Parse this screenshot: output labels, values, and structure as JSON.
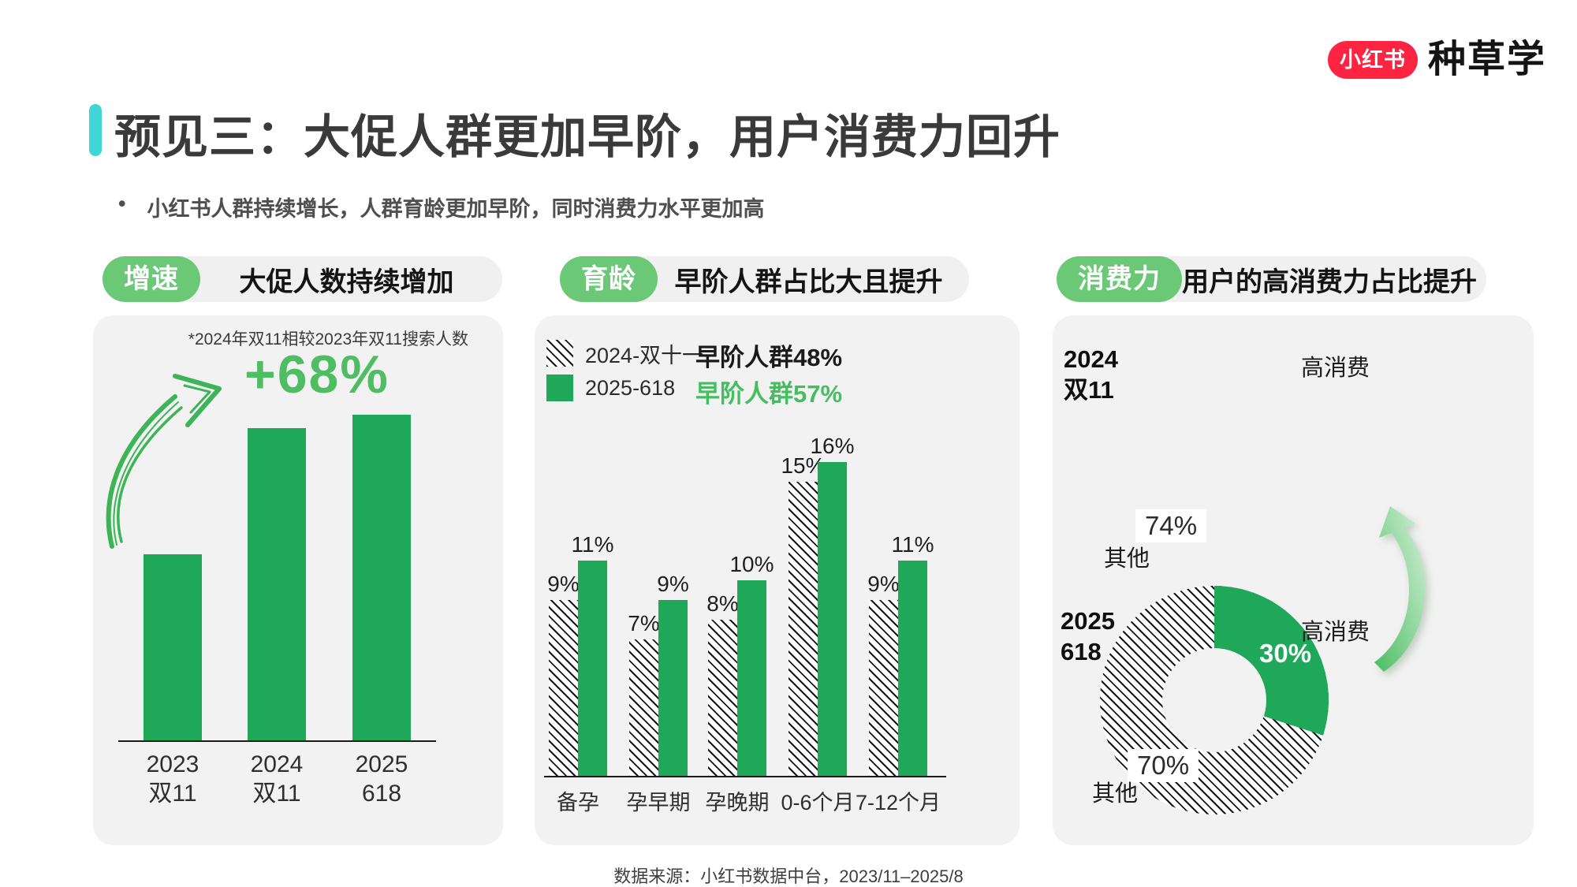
{
  "logo": {
    "badge": "小红书",
    "brand": "种草学",
    "badge_color": "#FF2442"
  },
  "header": {
    "title": "预见三：大促人群更加早阶，用户消费力回升",
    "accent_color": "#40D6D6",
    "subtitle_bullet": "•",
    "subtitle": "小红书人群持续增长，人群育龄更加早阶，同时消费力水平更加高"
  },
  "colors": {
    "solid_green": "#1FA75A",
    "pill_green": "#6AC877",
    "annotation_green": "#4FBD63",
    "card_bg": "#F2F2F2"
  },
  "panels": {
    "growth": {
      "tag": "增速",
      "heading": "大促人数持续增加",
      "footnote": "*2024年双11相较2023年双11搜索人数",
      "annotation": "+68%",
      "category_lines": [
        [
          "2023",
          "双11"
        ],
        [
          "2024",
          "双11"
        ],
        [
          "2025",
          "618"
        ]
      ]
    },
    "fertility": {
      "tag": "育龄",
      "heading": "早阶人群占比大且提升",
      "highlight_2024": "早阶人群48%",
      "highlight_2025": "早阶人群57%"
    },
    "spending": {
      "tag": "消费力",
      "heading": "用户的高消费力占比提升",
      "group_2024": {
        "label_line1": "2024",
        "label_line2": "双11",
        "high_label": "高消费",
        "other_value": "74%",
        "other_label": "其他"
      },
      "group_2025": {
        "label_line1": "2025",
        "label_line2": "618",
        "high_label": "高消费",
        "high_value": "30%",
        "other_value": "70%",
        "other_label": "其他"
      }
    }
  },
  "chart_data": [
    {
      "id": "growth-bar",
      "type": "bar",
      "title": "大促人数持续增加",
      "footnote": "*2024年双11相较2023年双11搜索人数",
      "categories": [
        "2023 双11",
        "2024 双11",
        "2025 618"
      ],
      "values": [
        100,
        168,
        175
      ],
      "value_basis": "relative search population index (2023双11 = 100)",
      "annotation": "+68%",
      "bar_color": "#1FA75A",
      "grid": false
    },
    {
      "id": "fertility-grouped-bar",
      "type": "bar",
      "categories": [
        "备孕",
        "孕早期",
        "孕晚期",
        "0-6个月",
        "7-12个月"
      ],
      "series": [
        {
          "name": "2024-双十一",
          "style": "black-white-hatched",
          "values": [
            9,
            7,
            8,
            15,
            9
          ]
        },
        {
          "name": "2025-618",
          "style": "solid-green",
          "values": [
            11,
            9,
            10,
            16,
            11
          ]
        }
      ],
      "unit": "%",
      "annotations": [
        "早阶人群48%",
        "早阶人群57%"
      ],
      "legend_position": "top-left",
      "grid": false
    },
    {
      "id": "spending-2024-double11",
      "type": "pie",
      "group": "2024 双11",
      "slices": [
        {
          "label": "高消费"
        },
        {
          "label": "其他",
          "value": 74
        }
      ],
      "unit": "%"
    },
    {
      "id": "spending-2025-618-donut",
      "type": "pie",
      "group": "2025 618",
      "slices": [
        {
          "label": "高消费",
          "value": 30,
          "style": "solid-green"
        },
        {
          "label": "其他",
          "value": 70,
          "style": "black-white-hatched"
        }
      ],
      "unit": "%"
    }
  ],
  "footer": {
    "source": "数据来源：小红书数据中台，2023/11–2025/8"
  }
}
